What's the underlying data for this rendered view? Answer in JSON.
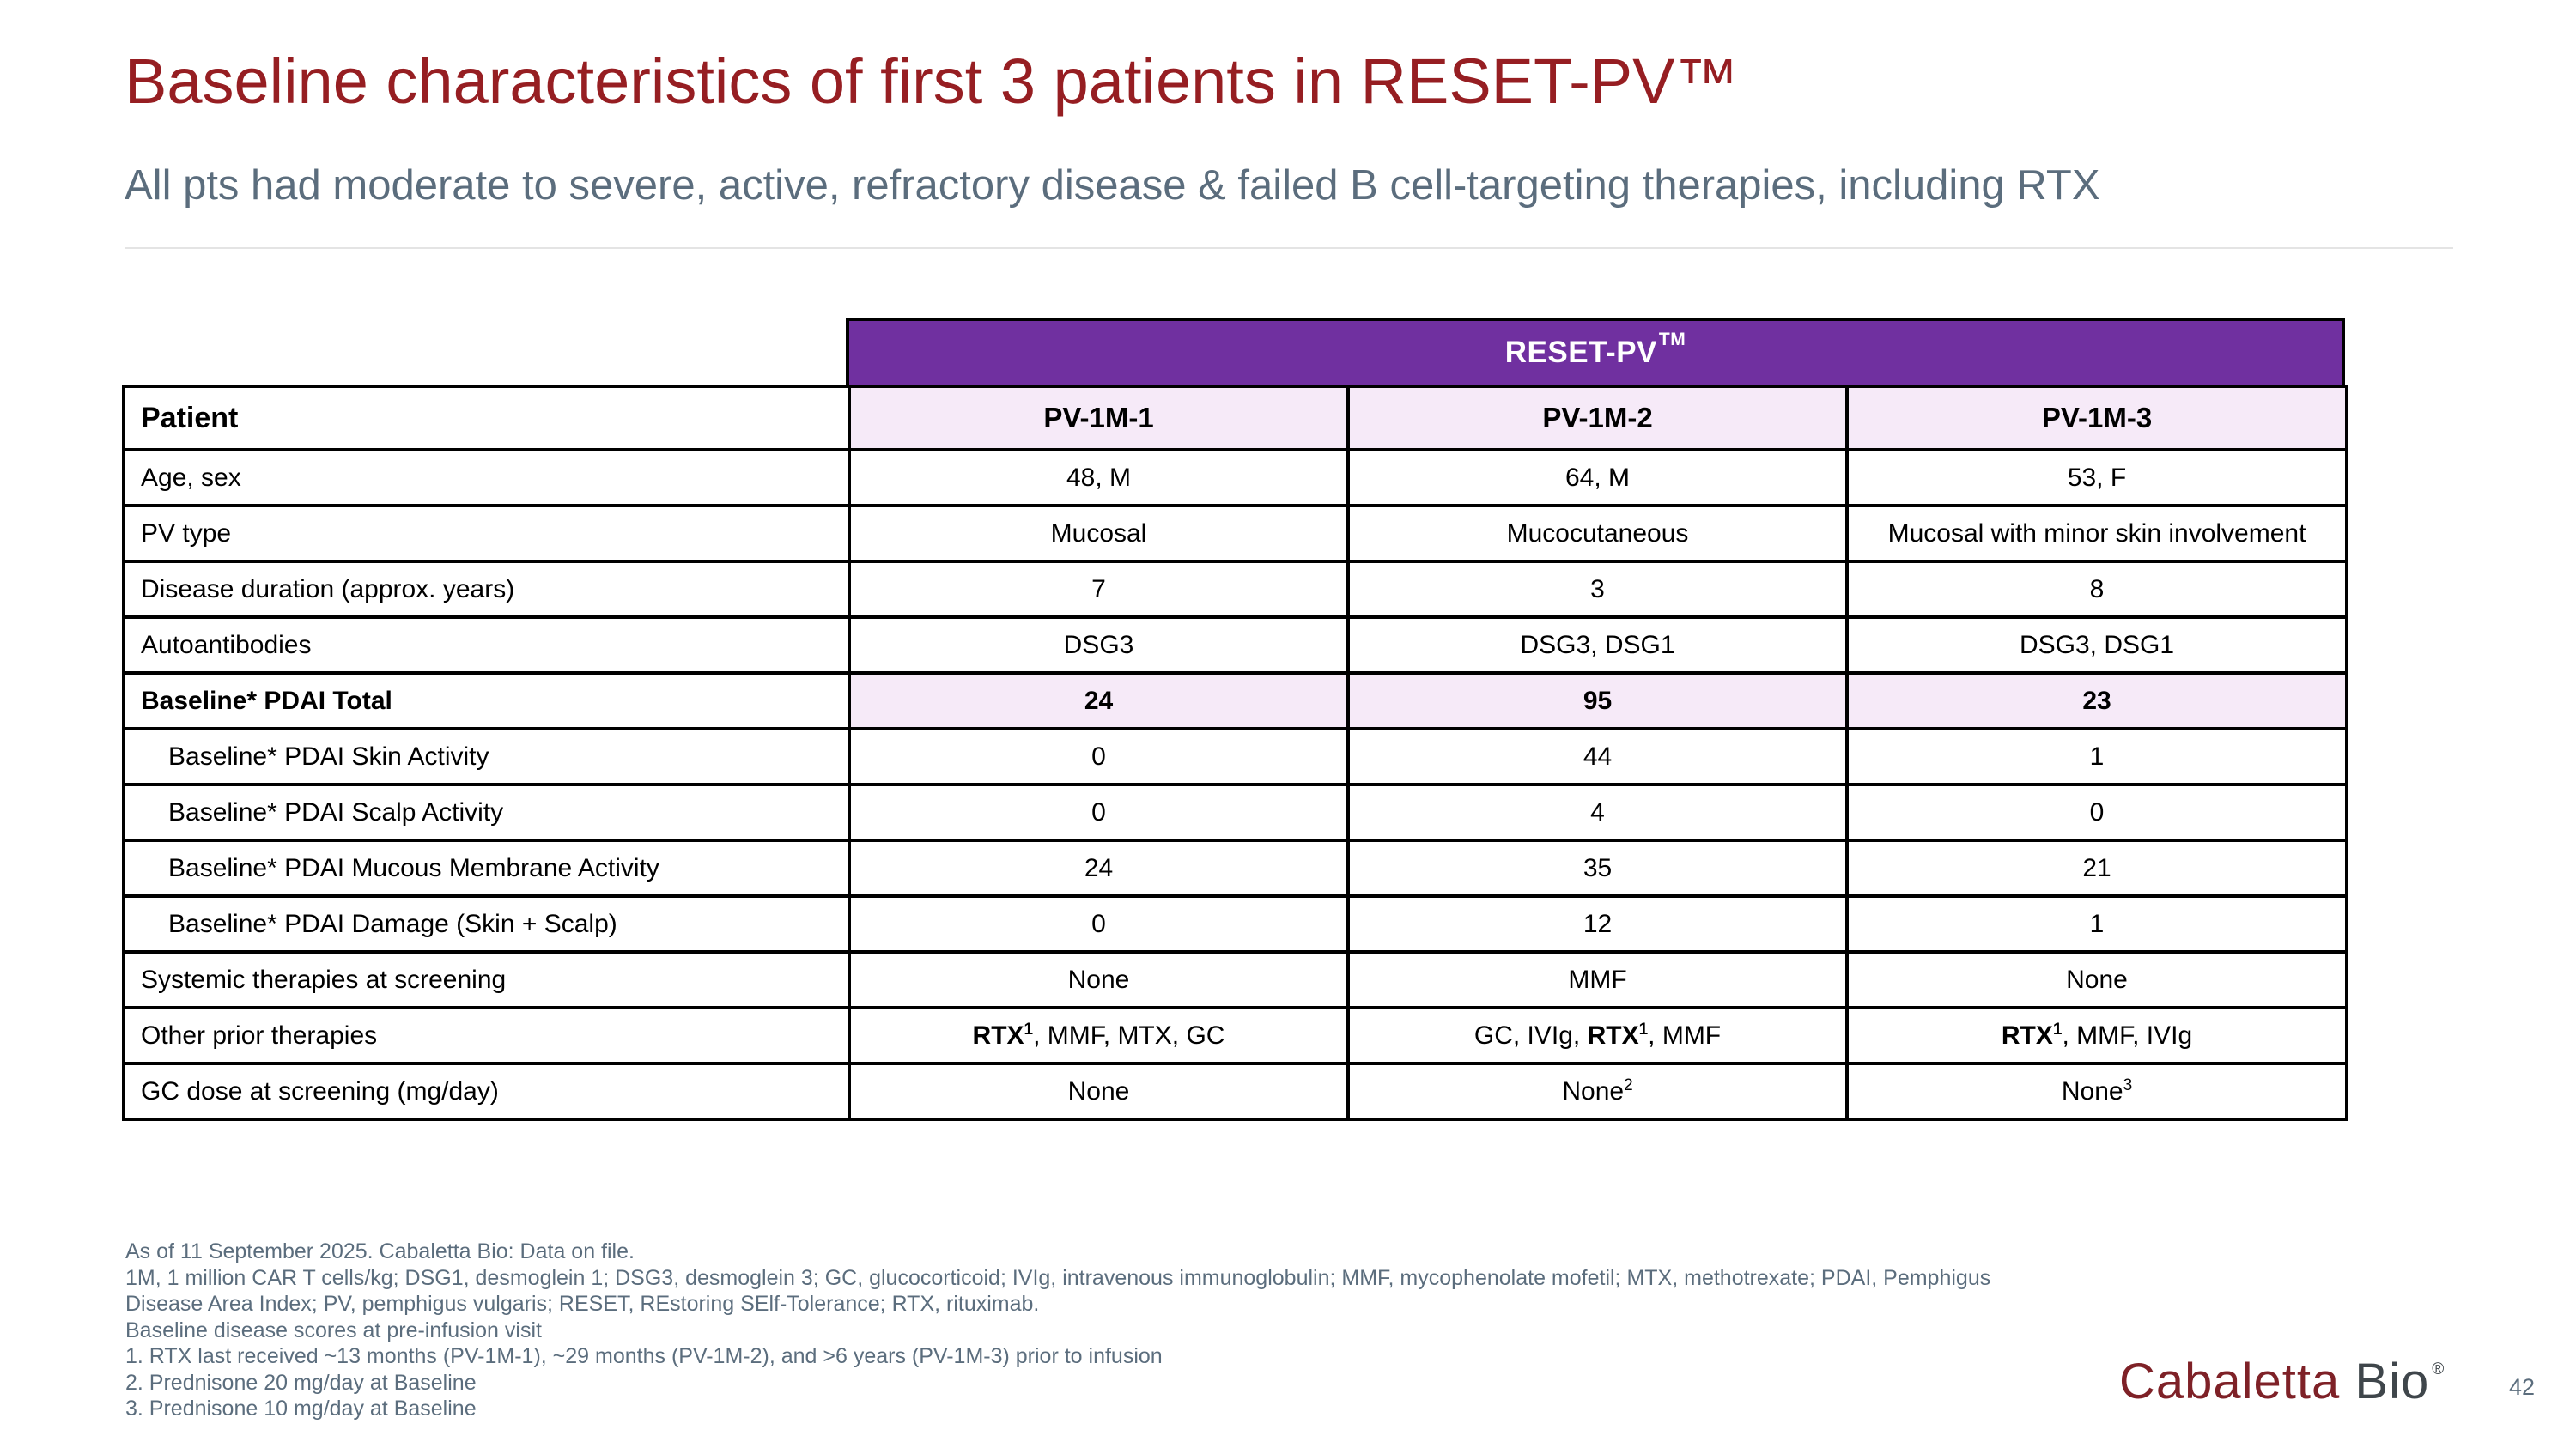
{
  "slide": {
    "title": "Baseline characteristics of first 3 patients in RESET-PV™",
    "subtitle": "All pts had moderate to severe, active, refractory disease & failed B cell-targeting therapies, including RTX",
    "page_number": "42"
  },
  "table": {
    "band_label": "RESET-PV",
    "band_sup": "TM",
    "header": {
      "label": "Patient",
      "columns": [
        "PV-1M-1",
        "PV-1M-2",
        "PV-1M-3"
      ]
    },
    "rows": [
      {
        "label": "Age, sex",
        "cells": [
          [
            {
              "t": "48, M"
            }
          ],
          [
            {
              "t": "64, M"
            }
          ],
          [
            {
              "t": "53, F"
            }
          ]
        ]
      },
      {
        "label": "PV type",
        "cells": [
          [
            {
              "t": "Mucosal"
            }
          ],
          [
            {
              "t": "Mucocutaneous"
            }
          ],
          [
            {
              "t": "Mucosal with minor skin involvement"
            }
          ]
        ]
      },
      {
        "label": "Disease duration (approx. years)",
        "cells": [
          [
            {
              "t": "7"
            }
          ],
          [
            {
              "t": "3"
            }
          ],
          [
            {
              "t": "8"
            }
          ]
        ]
      },
      {
        "label": "Autoantibodies",
        "cells": [
          [
            {
              "t": "DSG3"
            }
          ],
          [
            {
              "t": "DSG3, DSG1"
            }
          ],
          [
            {
              "t": "DSG3, DSG1"
            }
          ]
        ]
      },
      {
        "label": "Baseline* PDAI Total",
        "bold": true,
        "highlight": true,
        "cells": [
          [
            {
              "t": "24"
            }
          ],
          [
            {
              "t": "95"
            }
          ],
          [
            {
              "t": "23"
            }
          ]
        ]
      },
      {
        "label": "Baseline* PDAI Skin Activity",
        "indent": true,
        "cells": [
          [
            {
              "t": "0"
            }
          ],
          [
            {
              "t": "44"
            }
          ],
          [
            {
              "t": "1"
            }
          ]
        ]
      },
      {
        "label": "Baseline* PDAI Scalp Activity",
        "indent": true,
        "cells": [
          [
            {
              "t": "0"
            }
          ],
          [
            {
              "t": "4"
            }
          ],
          [
            {
              "t": "0"
            }
          ]
        ]
      },
      {
        "label": "Baseline* PDAI Mucous Membrane Activity",
        "indent": true,
        "cells": [
          [
            {
              "t": "24"
            }
          ],
          [
            {
              "t": "35"
            }
          ],
          [
            {
              "t": "21"
            }
          ]
        ]
      },
      {
        "label": "Baseline* PDAI Damage (Skin + Scalp)",
        "indent": true,
        "cells": [
          [
            {
              "t": "0"
            }
          ],
          [
            {
              "t": "12"
            }
          ],
          [
            {
              "t": "1"
            }
          ]
        ]
      },
      {
        "label": "Systemic therapies at screening",
        "cells": [
          [
            {
              "t": "None"
            }
          ],
          [
            {
              "t": "MMF"
            }
          ],
          [
            {
              "t": "None"
            }
          ]
        ]
      },
      {
        "label": "Other prior therapies",
        "cells": [
          [
            {
              "t": "RTX",
              "b": true
            },
            {
              "t": "1",
              "b": true,
              "sup": true
            },
            {
              "t": ", MMF, MTX, GC"
            }
          ],
          [
            {
              "t": "GC, IVIg, "
            },
            {
              "t": "RTX",
              "b": true
            },
            {
              "t": "1",
              "b": true,
              "sup": true
            },
            {
              "t": ", MMF"
            }
          ],
          [
            {
              "t": "RTX",
              "b": true
            },
            {
              "t": "1",
              "b": true,
              "sup": true
            },
            {
              "t": ", MMF, IVIg"
            }
          ]
        ]
      },
      {
        "label": "GC dose at screening (mg/day)",
        "cells": [
          [
            {
              "t": "None"
            }
          ],
          [
            {
              "t": "None"
            },
            {
              "t": "2",
              "sup": true
            }
          ],
          [
            {
              "t": "None"
            },
            {
              "t": "3",
              "sup": true
            }
          ]
        ]
      }
    ]
  },
  "footnotes": [
    "As of 11 September 2025. Cabaletta Bio: Data on file.",
    "1M, 1 million CAR T cells/kg; DSG1, desmoglein 1; DSG3, desmoglein 3; GC, glucocorticoid; IVIg, intravenous immunoglobulin; MMF, mycophenolate mofetil; MTX, methotrexate; PDAI, Pemphigus",
    "Disease Area Index; PV, pemphigus vulgaris; RESET, REstoring SElf-Tolerance; RTX, rituximab.",
    "Baseline disease scores at pre-infusion visit",
    "1. RTX last received ~13 months (PV-1M-1), ~29 months (PV-1M-2), and >6 years (PV-1M-3) prior to infusion",
    "2. Prednisone 20 mg/day at Baseline",
    "3. Prednisone 10 mg/day at Baseline"
  ],
  "logo": {
    "part1": "Cabaletta",
    "part2": "Bio",
    "reg": "®"
  },
  "colors": {
    "title_red": "#961e22",
    "subtitle_gray": "#5b6d7d",
    "band_purple": "#7030a0",
    "row_highlight": "#f6eaf8",
    "border_black": "#000000",
    "logo_red": "#7e2127",
    "logo_gray": "#3f464b"
  }
}
